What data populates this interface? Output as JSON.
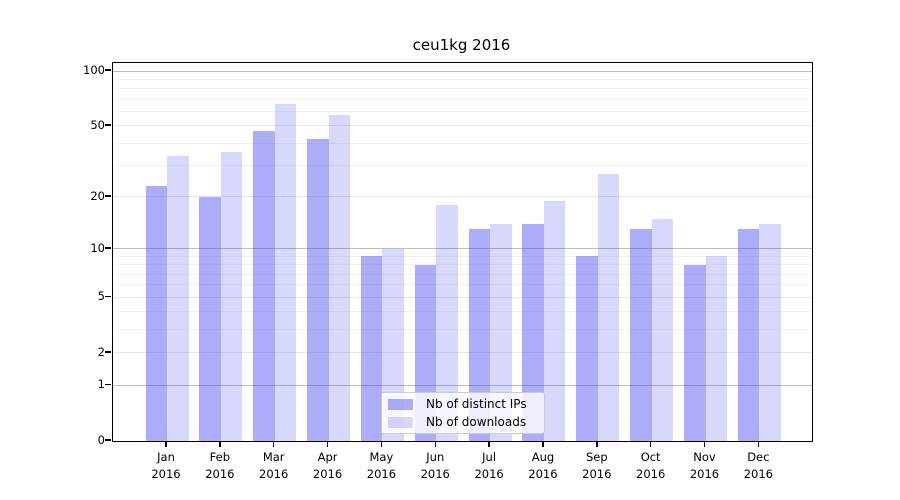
{
  "title": "ceu1kg 2016",
  "chart_data": {
    "type": "bar",
    "title": "ceu1kg 2016",
    "categories": [
      "Jan",
      "Feb",
      "Mar",
      "Apr",
      "May",
      "Jun",
      "Jul",
      "Aug",
      "Sep",
      "Oct",
      "Nov",
      "Dec"
    ],
    "year_label": "2016",
    "series": [
      {
        "name": "Nb of distinct IPs",
        "color": "rgba(70,70,240,0.45)",
        "values": [
          23,
          20,
          47,
          42,
          9,
          8,
          13,
          14,
          9,
          13,
          8,
          13
        ]
      },
      {
        "name": "Nb of downloads",
        "color": "rgba(70,70,240,0.21)",
        "values": [
          34,
          36,
          66,
          57,
          10,
          18,
          14,
          19,
          27,
          15,
          9,
          14
        ]
      }
    ],
    "yscale": "log1p",
    "ylim": [
      0,
      110
    ],
    "ytick_labels": [
      100,
      50,
      20,
      10,
      5,
      2,
      1,
      0
    ],
    "gridlines": {
      "major": [
        1,
        10,
        100
      ],
      "mid": [
        2,
        5,
        20,
        50
      ],
      "minor": [
        3,
        4,
        6,
        7,
        8,
        9,
        30,
        40,
        60,
        70,
        80,
        90
      ]
    },
    "legend_position": "lower center",
    "colors": {
      "grid_major": "#bdbdbd",
      "grid_mid": "#e7e7e7",
      "grid_minor": "#f2f2f2",
      "axis": "#000000",
      "background": "#ffffff"
    }
  }
}
